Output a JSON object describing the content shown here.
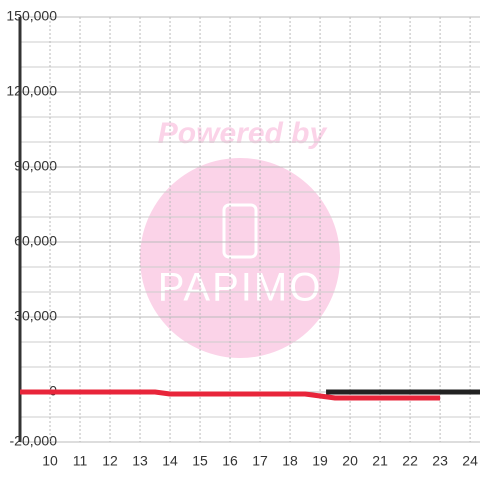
{
  "chart_data": {
    "type": "line",
    "watermark": {
      "heading": "Powered by",
      "logo": "PAPIMO"
    },
    "xlim": [
      9,
      24.33
    ],
    "xticks": [
      10,
      11,
      12,
      13,
      14,
      15,
      16,
      17,
      18,
      19,
      20,
      21,
      22,
      23,
      24
    ],
    "ylim": [
      -20000,
      150000
    ],
    "yticks": [
      {
        "value": -20000,
        "label": "-20,000"
      },
      0,
      {
        "value": 30000,
        "label": "30,000"
      },
      {
        "value": 60000,
        "label": "60,000"
      },
      {
        "value": 90000,
        "label": "90,000"
      },
      {
        "value": 120000,
        "label": "120,000"
      },
      {
        "value": 150000,
        "label": "150,000"
      }
    ],
    "y_minor_ticks": [
      -10000,
      10000,
      20000,
      40000,
      50000,
      70000,
      80000,
      100000,
      110000,
      130000,
      140000
    ],
    "grid": true,
    "series": [
      {
        "color": "#222222",
        "x": [
          19.2,
          24.33
        ],
        "values": [
          0,
          0
        ]
      },
      {
        "color": "#e8253a",
        "x": [
          9,
          13.5,
          14,
          18.5,
          19,
          19.5,
          23
        ],
        "values": [
          0,
          0,
          -800,
          -800,
          -1600,
          -2400,
          -2400
        ]
      }
    ]
  }
}
